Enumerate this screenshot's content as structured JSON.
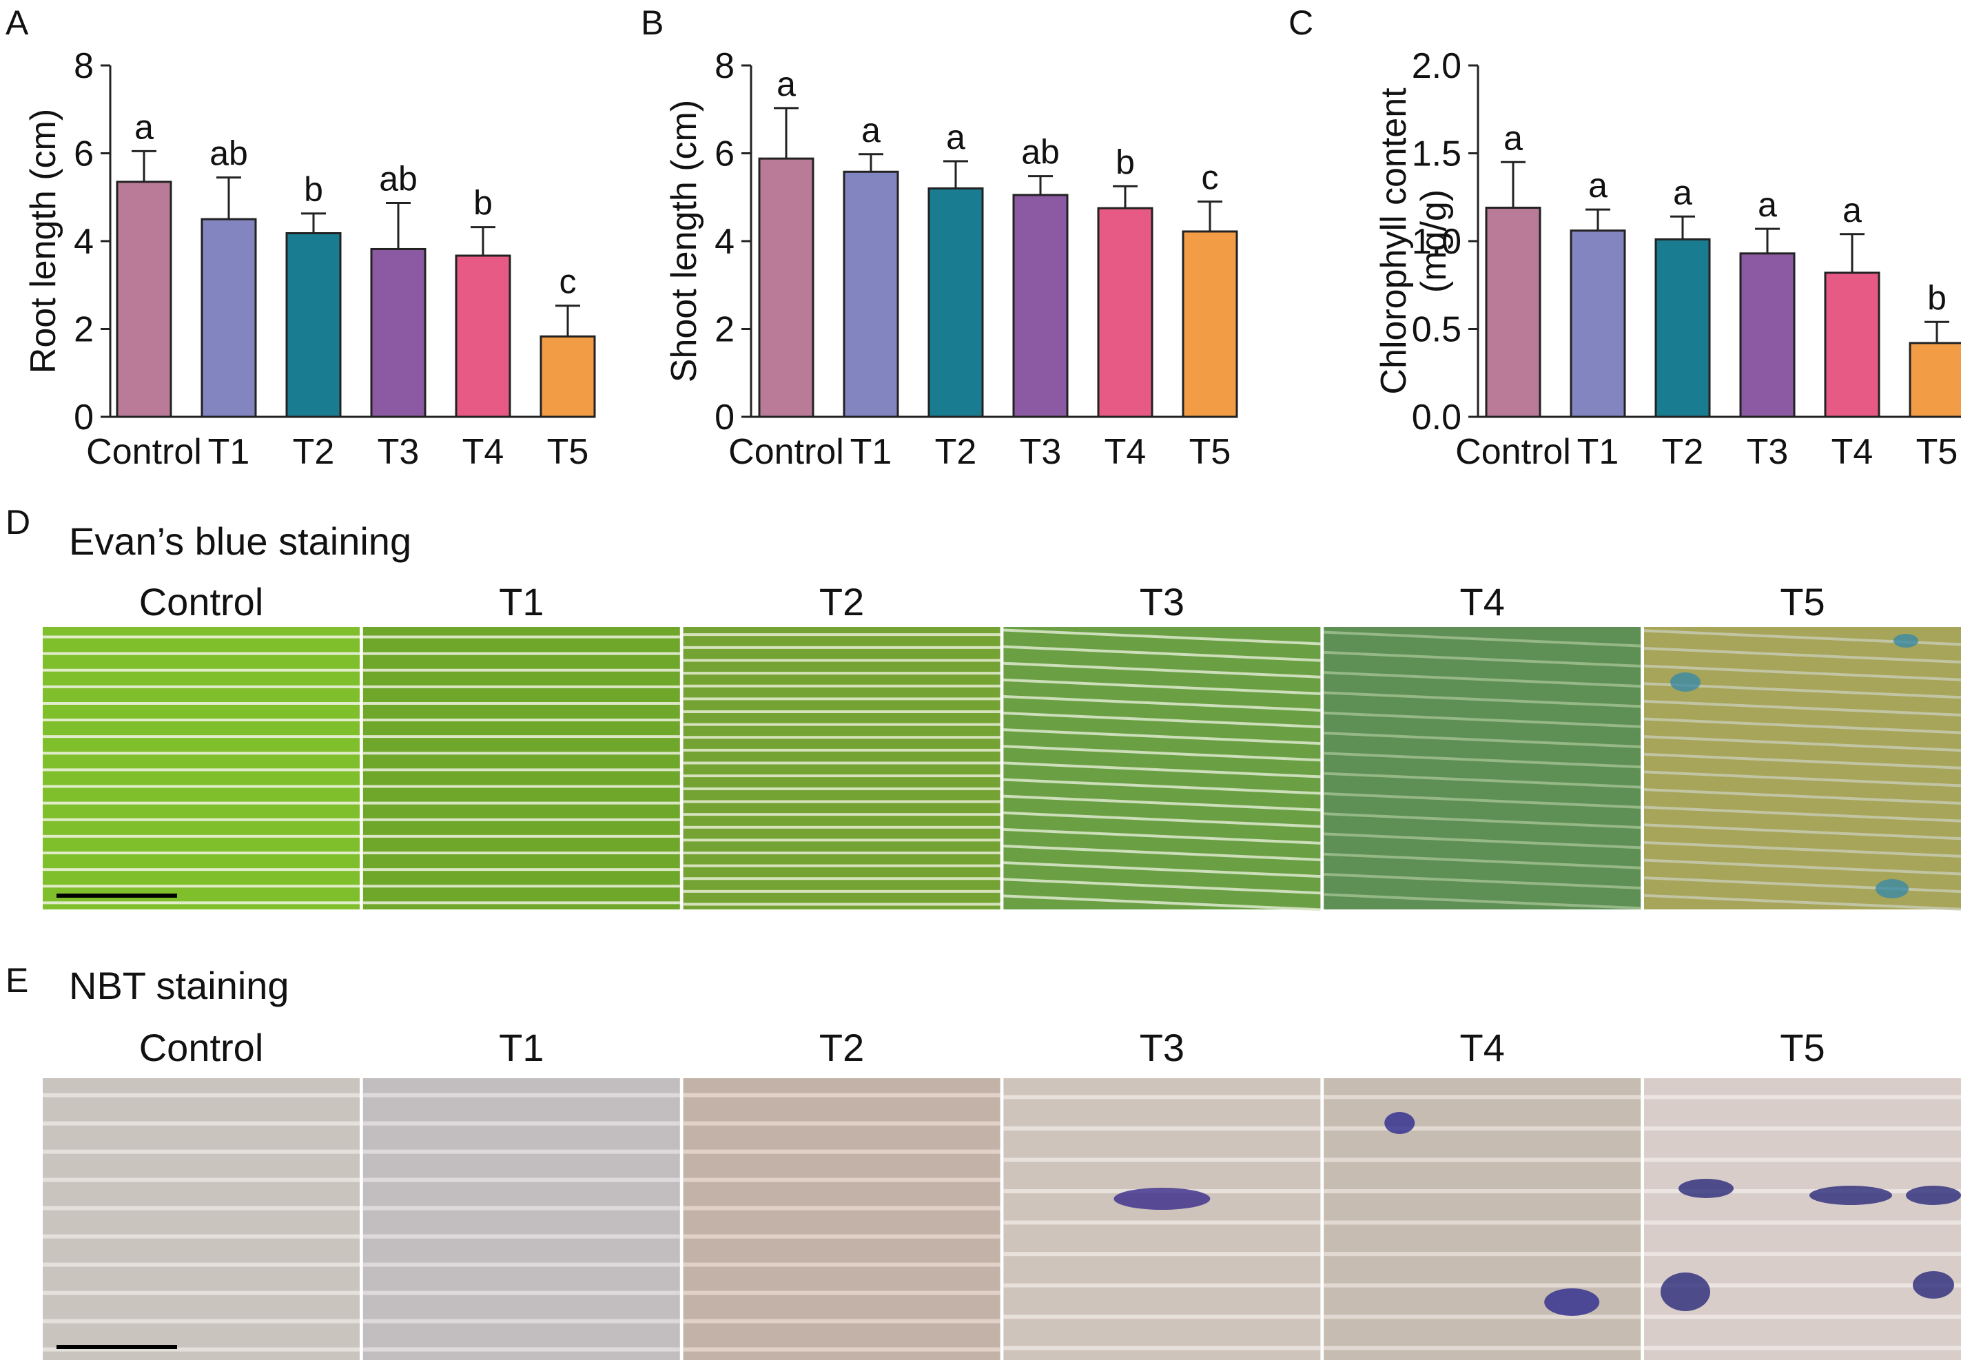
{
  "figure": {
    "panel_A_letter": "A",
    "panel_B_letter": "B",
    "panel_C_letter": "C",
    "panel_D_letter": "D",
    "panel_E_letter": "E",
    "section_D_title": "Evan’s blue staining",
    "section_E_title": "NBT staining"
  },
  "colors": {
    "Control": "#b97b97",
    "T1": "#8385c1",
    "T2": "#1a7c91",
    "T3": "#8c5aa2",
    "T4": "#e85a86",
    "T5": "#f29c45"
  },
  "chart_data": [
    {
      "type": "bar",
      "panel": "A",
      "categories": [
        "Control",
        "T1",
        "T2",
        "T3",
        "T4",
        "T5"
      ],
      "values": [
        5.35,
        4.5,
        4.18,
        3.82,
        3.67,
        1.83
      ],
      "errors": [
        0.7,
        0.95,
        0.45,
        1.05,
        0.65,
        0.7
      ],
      "significance": [
        "a",
        "ab",
        "b",
        "ab",
        "b",
        "c"
      ],
      "ylabel": "Root length (cm)",
      "ylim": [
        0,
        8
      ],
      "yticks": [
        "0",
        "2",
        "4",
        "6",
        "8"
      ],
      "ytick_values": [
        0,
        2,
        4,
        6,
        8
      ]
    },
    {
      "type": "bar",
      "panel": "B",
      "categories": [
        "Control",
        "T1",
        "T2",
        "T3",
        "T4",
        "T5"
      ],
      "values": [
        5.88,
        5.58,
        5.2,
        5.05,
        4.75,
        4.22
      ],
      "errors": [
        1.15,
        0.4,
        0.62,
        0.43,
        0.5,
        0.68
      ],
      "significance": [
        "a",
        "a",
        "a",
        "ab",
        "b",
        "c"
      ],
      "ylabel": "Shoot length (cm)",
      "ylim": [
        0,
        8
      ],
      "yticks": [
        "0",
        "2",
        "4",
        "6",
        "8"
      ],
      "ytick_values": [
        0,
        2,
        4,
        6,
        8
      ]
    },
    {
      "type": "bar",
      "panel": "C",
      "categories": [
        "Control",
        "T1",
        "T2",
        "T3",
        "T4",
        "T5"
      ],
      "values": [
        1.19,
        1.06,
        1.01,
        0.93,
        0.82,
        0.42
      ],
      "errors": [
        0.26,
        0.12,
        0.13,
        0.14,
        0.22,
        0.12
      ],
      "significance": [
        "a",
        "a",
        "a",
        "a",
        "a",
        "b"
      ],
      "ylabel": [
        "Chlorophyll content",
        "(mg/g)"
      ],
      "ylim": [
        0,
        2
      ],
      "yticks": [
        "0.0",
        "0.5",
        "1.0",
        "1.5",
        "2.0"
      ],
      "ytick_values": [
        0,
        0.5,
        1.0,
        1.5,
        2.0
      ]
    }
  ],
  "micrographs": {
    "D": [
      {
        "label": "Control",
        "bg": "#7fbf2c",
        "stripe": "#f2f5e6",
        "stripes": 17,
        "spots": []
      },
      {
        "label": "T1",
        "bg": "#6ea72a",
        "stripe": "#eef2e0",
        "stripes": 17,
        "spots": []
      },
      {
        "label": "T2",
        "bg": "#74a233",
        "stripe": "#e7eed5",
        "stripes": 22,
        "spots": []
      },
      {
        "label": "T3",
        "bg": "#6aa043",
        "stripe": "#dfe9cf",
        "stripes": 17,
        "spots": []
      },
      {
        "label": "T4",
        "bg": "#5e8f54",
        "stripe": "#9fc08f",
        "stripes": 14,
        "spots": []
      },
      {
        "label": "T5",
        "bg": "#a7a55a",
        "stripe": "#c7cbb0",
        "stripes": 16,
        "spots": [
          "#3c8aa5"
        ]
      }
    ],
    "E": [
      {
        "label": "Control",
        "bg": "#c9c4bd",
        "stripe": "#e9e6e1",
        "stripes": 10,
        "spots": []
      },
      {
        "label": "T1",
        "bg": "#c2bec0",
        "stripe": "#e4e0e2",
        "stripes": 10,
        "spots": []
      },
      {
        "label": "T2",
        "bg": "#c3b2a7",
        "stripe": "#e6d8cf",
        "stripes": 10,
        "spots": []
      },
      {
        "label": "T3",
        "bg": "#cfc4bb",
        "stripe": "#ece6e1",
        "stripes": 9,
        "spots": [
          "#3a2a8c"
        ]
      },
      {
        "label": "T4",
        "bg": "#c6bcb1",
        "stripe": "#e7e0d8",
        "stripes": 9,
        "spots": [
          "#2d2a8f"
        ]
      },
      {
        "label": "T5",
        "bg": "#d8cdc9",
        "stripe": "#f0e9e6",
        "stripes": 9,
        "spots": [
          "#2b2b7a"
        ]
      }
    ]
  }
}
